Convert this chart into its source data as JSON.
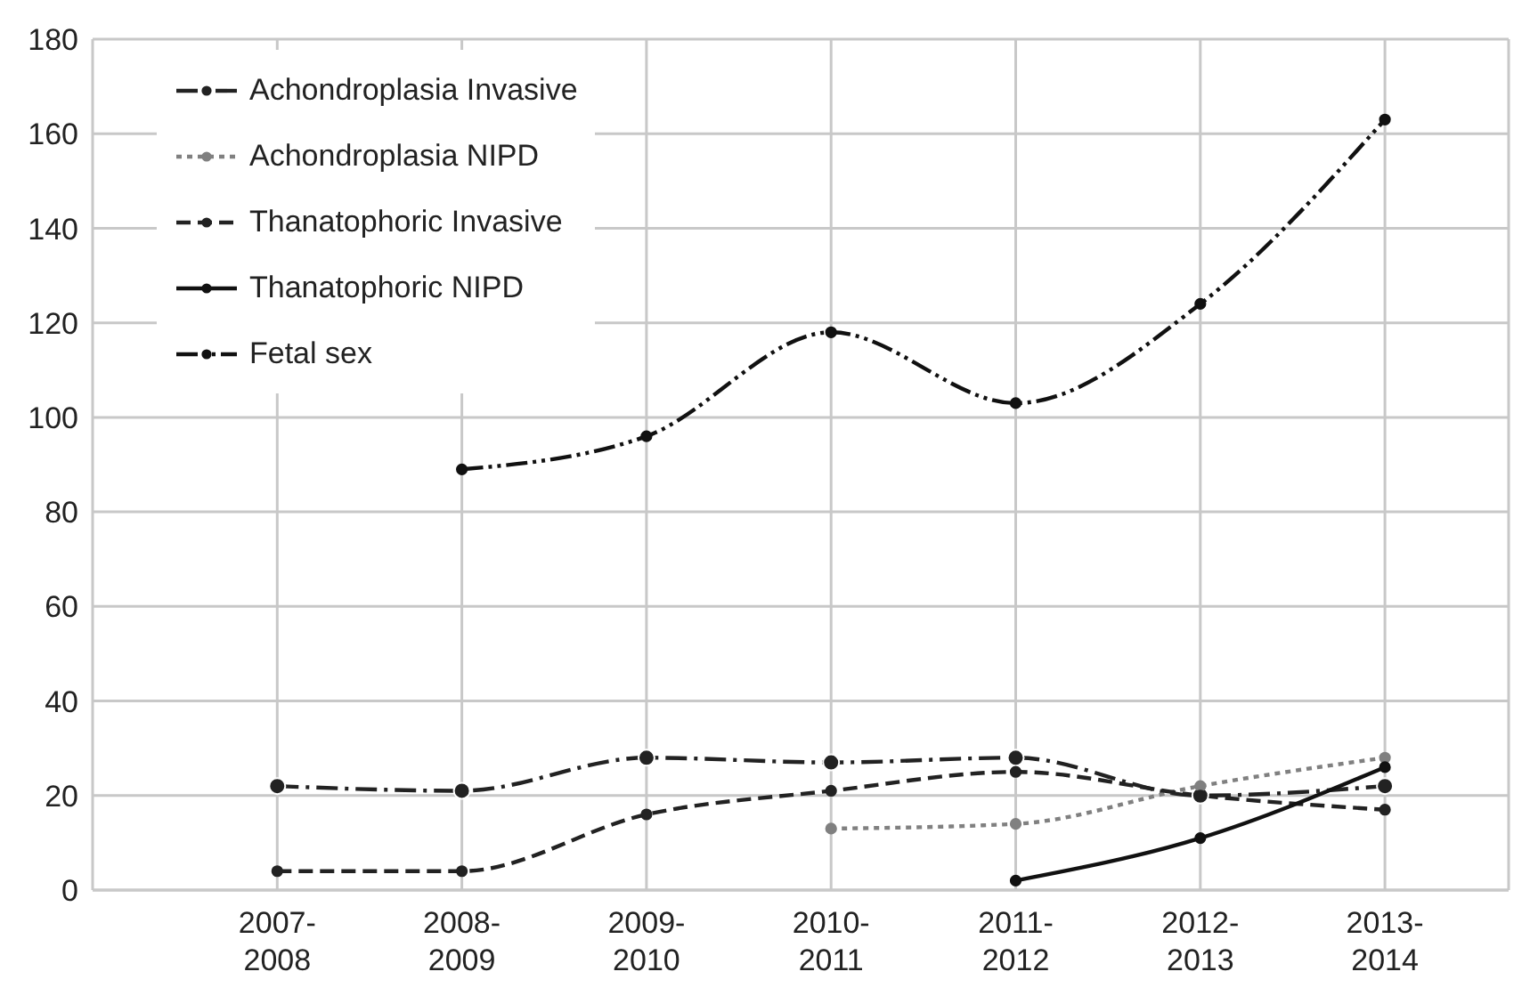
{
  "chart_data": {
    "type": "line",
    "categories": [
      "2007-2008",
      "2008-2009",
      "2009-2010",
      "2010-2011",
      "2011-2012",
      "2012-2013",
      "2013-2014"
    ],
    "series": [
      {
        "name": "Achondroplasia Invasive",
        "color": "#222222",
        "line_style": "dashdot",
        "values": [
          22,
          21,
          28,
          27,
          28,
          20,
          22
        ]
      },
      {
        "name": "Achondroplasia NIPD",
        "color": "#808080",
        "line_style": "dotted",
        "values": [
          null,
          null,
          null,
          13,
          14,
          22,
          28
        ]
      },
      {
        "name": "Thanatophoric Invasive",
        "color": "#222222",
        "line_style": "dashed",
        "values": [
          4,
          4,
          16,
          21,
          25,
          20,
          17
        ]
      },
      {
        "name": "Thanatophoric NIPD",
        "color": "#111111",
        "line_style": "solid",
        "values": [
          null,
          null,
          null,
          null,
          2,
          11,
          26
        ]
      },
      {
        "name": "Fetal sex",
        "color": "#111111",
        "line_style": "dashdotdot",
        "values": [
          null,
          89,
          96,
          118,
          103,
          124,
          163
        ]
      }
    ],
    "ylim": [
      0,
      180
    ],
    "yticks": [
      0,
      20,
      40,
      60,
      80,
      100,
      120,
      140,
      160,
      180
    ],
    "grid": true,
    "legend": "top left",
    "marker": "circle"
  }
}
